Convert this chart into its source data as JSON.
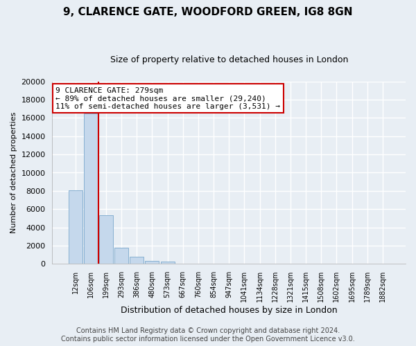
{
  "title": "9, CLARENCE GATE, WOODFORD GREEN, IG8 8GN",
  "subtitle": "Size of property relative to detached houses in London",
  "xlabel": "Distribution of detached houses by size in London",
  "ylabel": "Number of detached properties",
  "bar_labels": [
    "12sqm",
    "106sqm",
    "199sqm",
    "293sqm",
    "386sqm",
    "480sqm",
    "573sqm",
    "667sqm",
    "760sqm",
    "854sqm",
    "947sqm",
    "1041sqm",
    "1134sqm",
    "1228sqm",
    "1321sqm",
    "1415sqm",
    "1508sqm",
    "1602sqm",
    "1695sqm",
    "1789sqm",
    "1882sqm"
  ],
  "bar_values": [
    8100,
    16500,
    5300,
    1750,
    800,
    320,
    270,
    0,
    0,
    0,
    0,
    0,
    0,
    0,
    0,
    0,
    0,
    0,
    0,
    0,
    0
  ],
  "bar_color": "#c5d8ec",
  "bar_edge_color": "#7aa8cc",
  "vline_x_index": 1.5,
  "vline_color": "#cc0000",
  "ylim": [
    0,
    20000
  ],
  "yticks": [
    0,
    2000,
    4000,
    6000,
    8000,
    10000,
    12000,
    14000,
    16000,
    18000,
    20000
  ],
  "annotation_title": "9 CLARENCE GATE: 279sqm",
  "annotation_line1": "← 89% of detached houses are smaller (29,240)",
  "annotation_line2": "11% of semi-detached houses are larger (3,531) →",
  "annotation_box_color": "#ffffff",
  "annotation_box_edge": "#cc0000",
  "footer_line1": "Contains HM Land Registry data © Crown copyright and database right 2024.",
  "footer_line2": "Contains public sector information licensed under the Open Government Licence v3.0.",
  "background_color": "#e8eef4",
  "grid_color": "#ffffff",
  "title_fontsize": 11,
  "subtitle_fontsize": 9,
  "ylabel_fontsize": 8,
  "xlabel_fontsize": 9,
  "tick_fontsize": 8,
  "xtick_fontsize": 7,
  "annotation_fontsize": 8,
  "footer_fontsize": 7
}
